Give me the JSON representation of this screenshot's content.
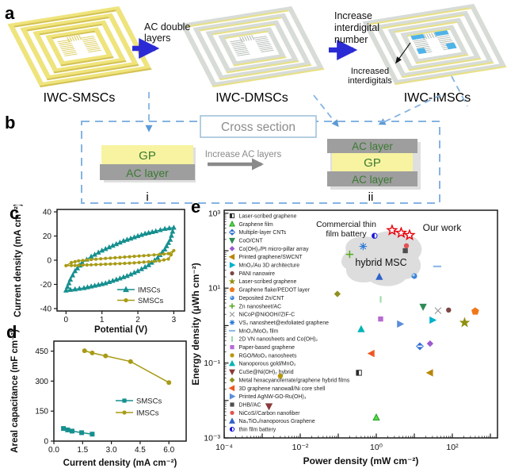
{
  "colors": {
    "teal": "#168f8f",
    "olive": "#a89b15",
    "blue_arrow": "#2b2bd5",
    "dashed_blue": "#85b4e2",
    "gp_yellow": "#f7f3a0",
    "ac_gray": "#9e9e9e",
    "label_green": "#3b7a33",
    "gray_text": "#8c8c8c",
    "our_work_red": "#e8000b",
    "blob_gray": "#d7d7d7",
    "device_yellow": "#efe47c",
    "device_gray": "#d7dcd8",
    "device_blue": "#4fb3e8"
  },
  "panels": {
    "a": {
      "label": "a",
      "devices": [
        {
          "name": "IWC-SMSCs"
        },
        {
          "name": "IWC-DMSCs"
        },
        {
          "name": "IWC-IMSCs"
        }
      ],
      "arrow1_lines": [
        "AC double",
        "layers"
      ],
      "arrow2_lines": [
        "Increase",
        "interdigital",
        "number"
      ],
      "annotation_lines": [
        "Increased",
        "interdigitals"
      ]
    },
    "b": {
      "label": "b",
      "cross_section": "Cross section",
      "arrow_text": "Increase AC layers",
      "stack_i": {
        "layers": [
          {
            "text": "GP",
            "type": "gp"
          },
          {
            "text": "AC layer",
            "type": "ac"
          }
        ],
        "tag": "i"
      },
      "stack_ii": {
        "layers": [
          {
            "text": "AC layer",
            "type": "ac"
          },
          {
            "text": "GP",
            "type": "gp"
          },
          {
            "text": "AC layer",
            "type": "ac"
          }
        ],
        "tag": "ii"
      }
    },
    "c": {
      "label": "c"
    },
    "d": {
      "label": "d"
    },
    "e": {
      "label": "e"
    }
  },
  "chart_data": [
    {
      "type": "line",
      "panel": "c",
      "title": "",
      "xlabel": "Potential (V)",
      "ylabel": "Current density (mA cm⁻²)",
      "xlim": [
        -0.25,
        3.3
      ],
      "ylim": [
        -42,
        42
      ],
      "xticks": [
        "0",
        "1",
        "2",
        "3"
      ],
      "xtick_vals": [
        0,
        1,
        2,
        3
      ],
      "yticks": [
        "-40",
        "-20",
        "0",
        "20",
        "40"
      ],
      "ytick_vals": [
        -40,
        -20,
        0,
        20,
        40
      ],
      "legend_position": "bottom-right",
      "series": [
        {
          "name": "IMSCs",
          "color": "#168f8f",
          "marker": "triangle",
          "dense": true,
          "closed": true,
          "points": [
            [
              0,
              -25
            ],
            [
              0.12,
              -16
            ],
            [
              0.25,
              -9
            ],
            [
              0.45,
              -2
            ],
            [
              0.7,
              3
            ],
            [
              1.0,
              8
            ],
            [
              1.3,
              12
            ],
            [
              1.6,
              16
            ],
            [
              1.9,
              19
            ],
            [
              2.2,
              22
            ],
            [
              2.5,
              24
            ],
            [
              2.75,
              26
            ],
            [
              3,
              27
            ],
            [
              2.9,
              17
            ],
            [
              2.75,
              9
            ],
            [
              2.55,
              2
            ],
            [
              2.3,
              -4
            ],
            [
              2.0,
              -9
            ],
            [
              1.7,
              -13
            ],
            [
              1.4,
              -16
            ],
            [
              1.1,
              -19
            ],
            [
              0.8,
              -21
            ],
            [
              0.5,
              -23
            ],
            [
              0.25,
              -24
            ],
            [
              0,
              -25
            ]
          ]
        },
        {
          "name": "SMSCs",
          "color": "#a89b15",
          "marker": "circle",
          "dense": true,
          "closed": true,
          "points": [
            [
              0,
              -4.5
            ],
            [
              0.15,
              -2
            ],
            [
              0.35,
              -0.5
            ],
            [
              0.7,
              0.5
            ],
            [
              1.1,
              1.5
            ],
            [
              1.5,
              2.3
            ],
            [
              1.9,
              3.2
            ],
            [
              2.3,
              4
            ],
            [
              2.6,
              4.8
            ],
            [
              2.85,
              5.5
            ],
            [
              3,
              8
            ],
            [
              2.85,
              1
            ],
            [
              2.6,
              -0.5
            ],
            [
              2.3,
              -1.3
            ],
            [
              1.9,
              -2.2
            ],
            [
              1.5,
              -2.8
            ],
            [
              1.1,
              -3.3
            ],
            [
              0.7,
              -3.8
            ],
            [
              0.35,
              -4.2
            ],
            [
              0.15,
              -4.4
            ],
            [
              0,
              -4.5
            ]
          ]
        }
      ]
    },
    {
      "type": "line",
      "panel": "d",
      "title": "",
      "xlabel": "Current density (mA cm⁻²)",
      "ylabel": "Areal capacitance (mF cm⁻²)",
      "xlim": [
        0,
        6.9
      ],
      "ylim": [
        0,
        500
      ],
      "xticks": [
        "0.0",
        "1.5",
        "3.0",
        "4.5",
        "6.0"
      ],
      "xtick_vals": [
        0,
        1.5,
        3,
        4.5,
        6
      ],
      "yticks": [
        "0",
        "150",
        "300",
        "450"
      ],
      "ytick_vals": [
        0,
        150,
        300,
        450
      ],
      "legend_position": "right-middle",
      "series": [
        {
          "name": "SMSCs",
          "color": "#168f8f",
          "marker": "square",
          "dense": false,
          "points": [
            [
              0.5,
              63
            ],
            [
              0.72,
              56
            ],
            [
              0.95,
              50
            ],
            [
              1.45,
              42
            ],
            [
              2.0,
              35
            ]
          ]
        },
        {
          "name": "IMSCs",
          "color": "#a89b15",
          "marker": "circle",
          "dense": false,
          "points": [
            [
              1.6,
              452
            ],
            [
              2.0,
              441
            ],
            [
              2.7,
              426
            ],
            [
              4.0,
              398
            ],
            [
              6.0,
              293
            ]
          ]
        }
      ]
    },
    {
      "type": "scatter",
      "panel": "e",
      "title": "",
      "xlabel": "Power density (mW cm⁻²)",
      "ylabel": "Energy density (μWh cm⁻²)",
      "xscale": "log",
      "yscale": "log",
      "xlim": [
        0.0001,
        1500
      ],
      "ylim": [
        0.001,
        1000
      ],
      "xticks": [
        {
          "label": "10⁻⁴",
          "exp": -4
        },
        {
          "label": "10⁻²",
          "exp": -2
        },
        {
          "label": "10⁰",
          "exp": 0
        },
        {
          "label": "10²",
          "exp": 2
        }
      ],
      "yticks": [
        {
          "label": "10⁻³",
          "exp": -3
        },
        {
          "label": "10⁻¹",
          "exp": -1
        },
        {
          "label": "10¹",
          "exp": 1
        },
        {
          "label": "10³",
          "exp": 3
        }
      ],
      "points": [
        {
          "label": "Laser-scribed graphene",
          "shape": "halfsquare",
          "color": "#2b2b2b",
          "power": 0.35,
          "energy": 0.055
        },
        {
          "label": "Graphene film",
          "shape": "triangle",
          "color": "#5fd84e",
          "stroke": "#1f9e1f",
          "power": 1.0,
          "energy": 0.0035
        },
        {
          "label": "Multiple-layer CNTs",
          "shape": "diamond-band",
          "color": "#2f6fd2",
          "power": 14,
          "energy": 0.28
        },
        {
          "label": "CoO/CNT",
          "shape": "triangle-down",
          "color": "#2e8b57",
          "power": 17,
          "energy": 3.2
        },
        {
          "label": "Co(OH)₂/Pt micro-pillar array",
          "shape": "diamond",
          "color": "#9b59d0",
          "power": 26,
          "energy": 0.33
        },
        {
          "label": "Printed graphene/SWCNT",
          "shape": "triangle-left",
          "color": "#b8860b",
          "power": 26,
          "energy": 0.055
        },
        {
          "label": "MnO₂/Au 3D architecture",
          "shape": "triangle-right",
          "color": "#00b0cc",
          "power": 30,
          "energy": 1.4
        },
        {
          "label": "PANI nanowire",
          "shape": "circle",
          "color": "#7d4545",
          "power": 80,
          "energy": 2.6
        },
        {
          "label": "Laser-scribed graphene",
          "shape": "star",
          "color": "#8f8f10",
          "power": 210,
          "energy": 1.2
        },
        {
          "label": "Graphene flake/PEDOT layer",
          "shape": "pentagon",
          "color": "#f07818",
          "power": 400,
          "energy": 2.4
        },
        {
          "label": "Deposited Zn/CNT",
          "shape": "sphere",
          "color": "#3f86d8",
          "power": 10,
          "energy": 21
        },
        {
          "label": "Zn nanosheet/AC",
          "shape": "plus",
          "color": "#56aa1f",
          "power": 0.2,
          "energy": 80
        },
        {
          "label": "NiCoP@NiOOH//ZIF-C",
          "shape": "x",
          "color": "#979797",
          "power": 42,
          "energy": 2.5
        },
        {
          "label": "VS₂ nanosheet@exfoliated graphene",
          "shape": "asterisk",
          "color": "#2b79d8",
          "power": 0.45,
          "energy": 130
        },
        {
          "label": "MnO₂/MoO₂ film",
          "shape": "dash",
          "color": "#85b6e8",
          "power": 40,
          "energy": 38
        },
        {
          "label": "2D VN nanosheets and Co(OH)₂",
          "shape": "vbar",
          "color": "#9ad9a5",
          "power": 1.3,
          "energy": 5
        },
        {
          "label": "Paper-based graphene",
          "shape": "square",
          "color": "#b66ad2",
          "power": 1.3,
          "energy": 1.5
        },
        {
          "label": "RGO/MoO₃ nanosheets",
          "shape": "circle",
          "color": "#b8960c",
          "power": 0.003,
          "energy": 0.045
        },
        {
          "label": "Nanoporous gold/MnO₂",
          "shape": "triangle",
          "color": "#00b5b5",
          "power": 0.4,
          "energy": 0.8
        },
        {
          "label": "CuSe@Ni(OH)₂ hybrid",
          "shape": "triangle-down",
          "color": "#8b3a3a",
          "power": 0.0015,
          "energy": 0.007
        },
        {
          "label": "Metal hexacyanoferrate/graphene hybrid films",
          "shape": "diamond",
          "color": "#8f8f1f",
          "power": 0.095,
          "energy": 7
        },
        {
          "label": "3D graphene nanowall/Ni core shell",
          "shape": "triangle-left",
          "color": "#f0561f",
          "power": 0.75,
          "energy": 0.18
        },
        {
          "label": "Printed AgNW-GO-Ru(OH)₃",
          "shape": "triangle-right",
          "color": "#5b8dd9",
          "power": 4.2,
          "energy": 1.1
        },
        {
          "label": "DHB//AC",
          "shape": "square",
          "color": "#4f4f4f",
          "power": 5.8,
          "energy": 100
        },
        {
          "label": "NiCoS//Carbon nanofiber",
          "shape": "circle",
          "color": "#e25353",
          "power": 6.2,
          "energy": 135
        },
        {
          "label": "Na₄TiO₄/nanoporous Graphene",
          "shape": "triangle",
          "color": "#2f62c9",
          "power": 1.2,
          "energy": 20
        },
        {
          "label": "thin film battery",
          "shape": "half-circle",
          "color": "#1717d8",
          "power": 0.9,
          "energy": 250
        }
      ],
      "our_work": {
        "label": "Our work",
        "color": "#e8000b",
        "points": [
          [
            2.6,
            350
          ],
          [
            4.5,
            300
          ],
          [
            7.5,
            260
          ]
        ]
      },
      "annotations": {
        "commercial_lines": [
          "Commercial thin",
          "film battery"
        ],
        "hybrid": "hybrid MSC"
      }
    }
  ]
}
